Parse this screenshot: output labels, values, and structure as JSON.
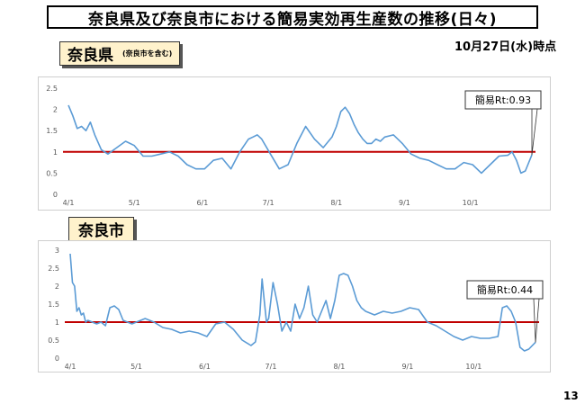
{
  "header": {
    "title": "奈良県及び奈良市における簡易実効再生産数の推移(日々)",
    "date": "10月27日(水)時点"
  },
  "labels": {
    "pref_main": "奈良県",
    "pref_sub": "(奈良市を含む)",
    "city": "奈良市"
  },
  "page_number": "13",
  "colors": {
    "series": "#5b9bd5",
    "reference": "#c00000",
    "label_bg": "#fff2cc"
  },
  "chart_data": [
    {
      "type": "line",
      "name_label": "奈良県",
      "x_ticks": [
        "4/1",
        "5/1",
        "6/1",
        "7/1",
        "8/1",
        "9/1",
        "10/1"
      ],
      "y_ticks": [
        0,
        0.5,
        1,
        1.5,
        2,
        2.5
      ],
      "ylim": [
        0,
        2.5
      ],
      "x_range_days": [
        0,
        211
      ],
      "reference_line": 1,
      "annotation": "簡易Rt:0.93",
      "series": [
        {
          "x": [
            0,
            2,
            4,
            6,
            8,
            10,
            12,
            15,
            18,
            22,
            26,
            30,
            34,
            38,
            42,
            46,
            50,
            54,
            58,
            62,
            66,
            70,
            74,
            78,
            82,
            84,
            86,
            88,
            92,
            96,
            100,
            104,
            108,
            112,
            116,
            120,
            122,
            124,
            126,
            128,
            130,
            132,
            134,
            136,
            138,
            140,
            142,
            144,
            148,
            152,
            156,
            160,
            164,
            168,
            172,
            176,
            180,
            184,
            188,
            192,
            196,
            200,
            202,
            204,
            206,
            208,
            211
          ],
          "y": [
            2.1,
            1.85,
            1.55,
            1.6,
            1.5,
            1.7,
            1.4,
            1.05,
            0.95,
            1.1,
            1.25,
            1.15,
            0.9,
            0.9,
            0.95,
            1.0,
            0.9,
            0.7,
            0.6,
            0.6,
            0.8,
            0.85,
            0.6,
            1.0,
            1.3,
            1.35,
            1.4,
            1.3,
            0.95,
            0.6,
            0.7,
            1.2,
            1.6,
            1.3,
            1.1,
            1.35,
            1.6,
            1.95,
            2.05,
            1.9,
            1.65,
            1.45,
            1.3,
            1.2,
            1.2,
            1.3,
            1.25,
            1.35,
            1.4,
            1.2,
            0.95,
            0.85,
            0.8,
            0.7,
            0.6,
            0.6,
            0.75,
            0.7,
            0.5,
            0.7,
            0.9,
            0.92,
            1.0,
            0.8,
            0.5,
            0.55,
            0.93
          ]
        }
      ]
    },
    {
      "type": "line",
      "name_label": "奈良市",
      "x_ticks": [
        "4/1",
        "5/1",
        "6/1",
        "7/1",
        "8/1",
        "9/1",
        "10/1"
      ],
      "y_ticks": [
        0,
        0.5,
        1,
        1.5,
        2,
        2.5,
        3
      ],
      "ylim": [
        0,
        3
      ],
      "x_range_days": [
        0,
        211
      ],
      "reference_line": 1,
      "annotation": "簡易Rt:0.44",
      "series": [
        {
          "x": [
            0,
            1,
            2,
            3,
            4,
            5,
            6,
            7,
            8,
            10,
            12,
            14,
            16,
            18,
            20,
            22,
            24,
            26,
            28,
            30,
            34,
            38,
            42,
            46,
            50,
            54,
            58,
            60,
            62,
            66,
            70,
            74,
            78,
            82,
            84,
            86,
            87,
            88,
            89,
            90,
            92,
            94,
            96,
            98,
            100,
            102,
            104,
            106,
            108,
            110,
            112,
            114,
            116,
            118,
            120,
            122,
            124,
            126,
            128,
            130,
            132,
            134,
            138,
            142,
            146,
            150,
            154,
            158,
            162,
            166,
            170,
            174,
            178,
            182,
            186,
            190,
            194,
            196,
            198,
            200,
            202,
            204,
            206,
            208,
            211
          ],
          "y": [
            2.9,
            2.1,
            2.0,
            1.3,
            1.4,
            1.2,
            1.25,
            1.0,
            1.05,
            1.0,
            0.95,
            1.0,
            0.9,
            1.4,
            1.45,
            1.35,
            1.05,
            1.0,
            0.95,
            1.0,
            1.1,
            1.0,
            0.85,
            0.8,
            0.7,
            0.75,
            0.7,
            0.65,
            0.6,
            0.95,
            1.0,
            0.8,
            0.5,
            0.35,
            0.45,
            1.2,
            2.2,
            1.6,
            1.0,
            1.1,
            2.1,
            1.5,
            0.75,
            1.0,
            0.75,
            1.5,
            1.1,
            1.4,
            2.0,
            1.2,
            1.0,
            1.3,
            1.6,
            1.1,
            1.6,
            2.3,
            2.35,
            2.3,
            2.0,
            1.6,
            1.4,
            1.3,
            1.2,
            1.3,
            1.25,
            1.3,
            1.4,
            1.35,
            1.0,
            0.9,
            0.75,
            0.6,
            0.5,
            0.6,
            0.55,
            0.55,
            0.6,
            1.4,
            1.45,
            1.3,
            1.0,
            0.3,
            0.2,
            0.25,
            0.44
          ]
        }
      ]
    }
  ]
}
